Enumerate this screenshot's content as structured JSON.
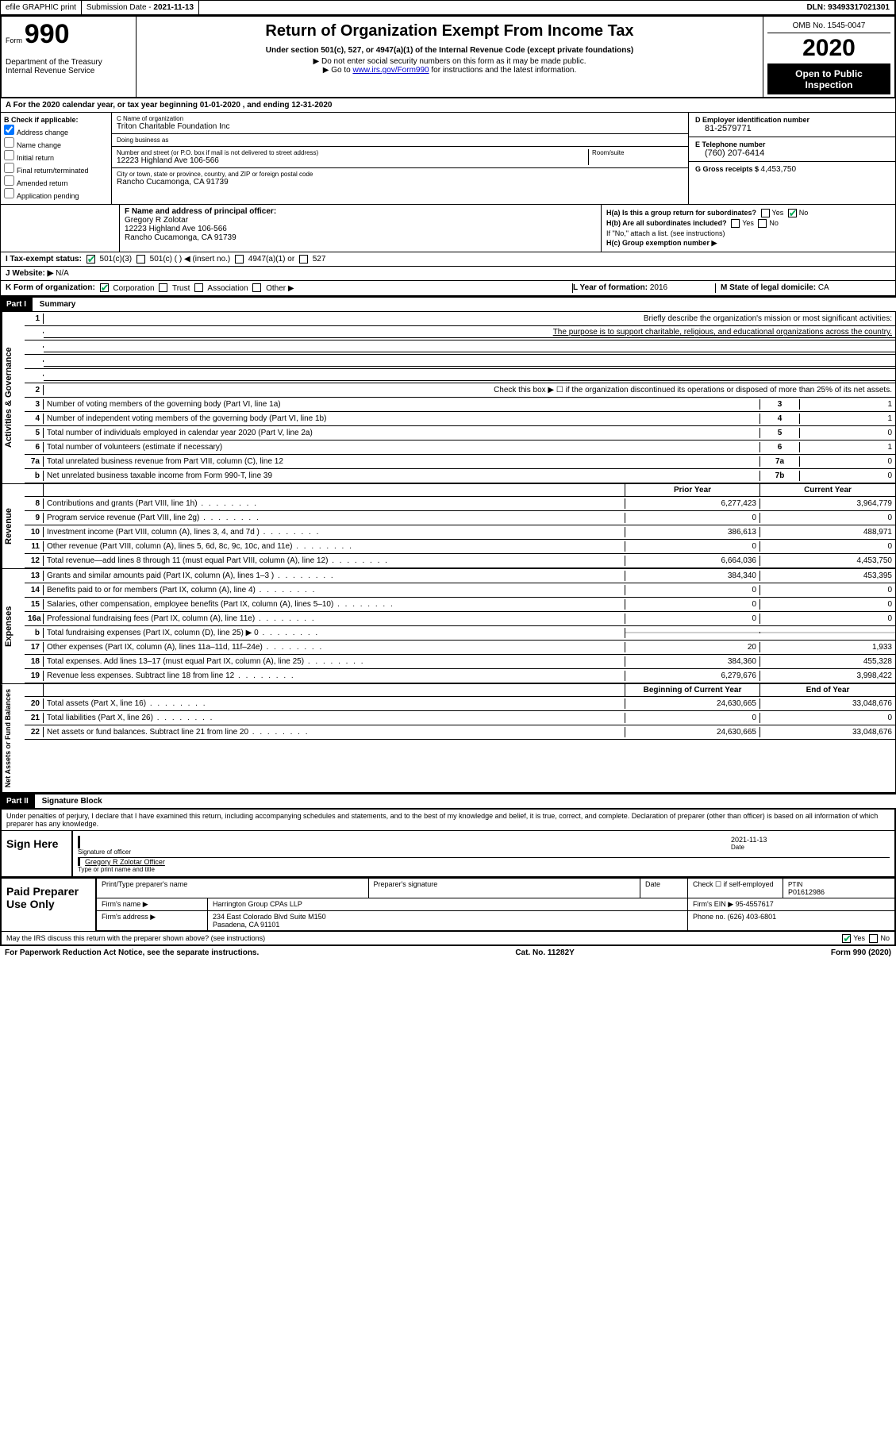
{
  "topbar": {
    "efile": "efile GRAPHIC print",
    "submission_label": "Submission Date - ",
    "submission_date": "2021-11-13",
    "dln_label": "DLN: ",
    "dln": "93493317021301"
  },
  "header": {
    "form_label": "Form",
    "form_num": "990",
    "dept": "Department of the Treasury\nInternal Revenue Service",
    "title": "Return of Organization Exempt From Income Tax",
    "sub1": "Under section 501(c), 527, or 4947(a)(1) of the Internal Revenue Code (except private foundations)",
    "sub2": "▶ Do not enter social security numbers on this form as it may be made public.",
    "sub3_a": "▶ Go to ",
    "sub3_link": "www.irs.gov/Form990",
    "sub3_b": " for instructions and the latest information.",
    "omb": "OMB No. 1545-0047",
    "year": "2020",
    "open": "Open to Public Inspection"
  },
  "row_a": "A For the 2020 calendar year, or tax year beginning 01-01-2020   , and ending 12-31-2020",
  "col_b": {
    "label": "B Check if applicable:",
    "items": [
      "Address change",
      "Name change",
      "Initial return",
      "Final return/terminated",
      "Amended return",
      "Application pending"
    ],
    "checked_index": 0
  },
  "col_c": {
    "name_lbl": "C Name of organization",
    "name": "Triton Charitable Foundation Inc",
    "dba_lbl": "Doing business as",
    "dba": "",
    "street_lbl": "Number and street (or P.O. box if mail is not delivered to street address)",
    "room_lbl": "Room/suite",
    "street": "12223 Highland Ave 106-566",
    "city_lbl": "City or town, state or province, country, and ZIP or foreign postal code",
    "city": "Rancho Cucamonga, CA  91739"
  },
  "col_d": {
    "ein_lbl": "D Employer identification number",
    "ein": "81-2579771",
    "tel_lbl": "E Telephone number",
    "tel": "(760) 207-6414",
    "gross_lbl": "G Gross receipts $ ",
    "gross": "4,453,750"
  },
  "row_f": {
    "lbl": "F Name and address of principal officer:",
    "name": "Gregory R Zolotar",
    "addr1": "12223 Highland Ave 106-566",
    "addr2": "Rancho Cucamonga, CA  91739"
  },
  "row_h": {
    "a": "H(a)  Is this a group return for subordinates?",
    "a_yes": "Yes",
    "a_no": "No",
    "b": "H(b)  Are all subordinates included?",
    "b_note": "If \"No,\" attach a list. (see instructions)",
    "c": "H(c)  Group exemption number ▶"
  },
  "row_i": {
    "lbl": "I  Tax-exempt status:",
    "opts": [
      "501(c)(3)",
      "501(c) (  ) ◀ (insert no.)",
      "4947(a)(1) or",
      "527"
    ],
    "checked": 0
  },
  "row_j": {
    "lbl": "J  Website: ▶",
    "val": "N/A"
  },
  "row_k": {
    "lbl": "K Form of organization:",
    "opts": [
      "Corporation",
      "Trust",
      "Association",
      "Other ▶"
    ],
    "checked": 0,
    "l_lbl": "L Year of formation: ",
    "l_val": "2016",
    "m_lbl": "M State of legal domicile: ",
    "m_val": "CA"
  },
  "part1_label": "Part I",
  "part1_title": "Summary",
  "sections": {
    "gov": {
      "side": "Activities & Governance",
      "rows": [
        {
          "n": "1",
          "d": "Briefly describe the organization's mission or most significant activities:"
        },
        {
          "mission": "The purpose is to support charitable, religious, and educational organizations across the country."
        },
        {
          "n": "2",
          "d": "Check this box ▶ ☐ if the organization discontinued its operations or disposed of more than 25% of its net assets."
        },
        {
          "n": "3",
          "d": "Number of voting members of the governing body (Part VI, line 1a)",
          "an": "3",
          "av": "1"
        },
        {
          "n": "4",
          "d": "Number of independent voting members of the governing body (Part VI, line 1b)",
          "an": "4",
          "av": "1"
        },
        {
          "n": "5",
          "d": "Total number of individuals employed in calendar year 2020 (Part V, line 2a)",
          "an": "5",
          "av": "0"
        },
        {
          "n": "6",
          "d": "Total number of volunteers (estimate if necessary)",
          "an": "6",
          "av": "1"
        },
        {
          "n": "7a",
          "d": "Total unrelated business revenue from Part VIII, column (C), line 12",
          "an": "7a",
          "av": "0"
        },
        {
          "n": "b",
          "d": "Net unrelated business taxable income from Form 990-T, line 39",
          "an": "7b",
          "av": "0"
        }
      ]
    },
    "rev": {
      "side": "Revenue",
      "hdr_prior": "Prior Year",
      "hdr_curr": "Current Year",
      "rows": [
        {
          "n": "8",
          "d": "Contributions and grants (Part VIII, line 1h)",
          "py": "6,277,423",
          "cy": "3,964,779"
        },
        {
          "n": "9",
          "d": "Program service revenue (Part VIII, line 2g)",
          "py": "0",
          "cy": "0"
        },
        {
          "n": "10",
          "d": "Investment income (Part VIII, column (A), lines 3, 4, and 7d )",
          "py": "386,613",
          "cy": "488,971"
        },
        {
          "n": "11",
          "d": "Other revenue (Part VIII, column (A), lines 5, 6d, 8c, 9c, 10c, and 11e)",
          "py": "0",
          "cy": "0"
        },
        {
          "n": "12",
          "d": "Total revenue—add lines 8 through 11 (must equal Part VIII, column (A), line 12)",
          "py": "6,664,036",
          "cy": "4,453,750"
        }
      ]
    },
    "exp": {
      "side": "Expenses",
      "rows": [
        {
          "n": "13",
          "d": "Grants and similar amounts paid (Part IX, column (A), lines 1–3 )",
          "py": "384,340",
          "cy": "453,395"
        },
        {
          "n": "14",
          "d": "Benefits paid to or for members (Part IX, column (A), line 4)",
          "py": "0",
          "cy": "0"
        },
        {
          "n": "15",
          "d": "Salaries, other compensation, employee benefits (Part IX, column (A), lines 5–10)",
          "py": "0",
          "cy": "0"
        },
        {
          "n": "16a",
          "d": "Professional fundraising fees (Part IX, column (A), line 11e)",
          "py": "0",
          "cy": "0"
        },
        {
          "n": "b",
          "d": "Total fundraising expenses (Part IX, column (D), line 25) ▶ 0",
          "grey": true
        },
        {
          "n": "17",
          "d": "Other expenses (Part IX, column (A), lines 11a–11d, 11f–24e)",
          "py": "20",
          "cy": "1,933"
        },
        {
          "n": "18",
          "d": "Total expenses. Add lines 13–17 (must equal Part IX, column (A), line 25)",
          "py": "384,360",
          "cy": "455,328"
        },
        {
          "n": "19",
          "d": "Revenue less expenses. Subtract line 18 from line 12",
          "py": "6,279,676",
          "cy": "3,998,422"
        }
      ]
    },
    "net": {
      "side": "Net Assets or Fund Balances",
      "hdr_prior": "Beginning of Current Year",
      "hdr_curr": "End of Year",
      "rows": [
        {
          "n": "20",
          "d": "Total assets (Part X, line 16)",
          "py": "24,630,665",
          "cy": "33,048,676"
        },
        {
          "n": "21",
          "d": "Total liabilities (Part X, line 26)",
          "py": "0",
          "cy": "0"
        },
        {
          "n": "22",
          "d": "Net assets or fund balances. Subtract line 21 from line 20",
          "py": "24,630,665",
          "cy": "33,048,676"
        }
      ]
    }
  },
  "part2_label": "Part II",
  "part2_title": "Signature Block",
  "sig": {
    "perjury": "Under penalties of perjury, I declare that I have examined this return, including accompanying schedules and statements, and to the best of my knowledge and belief, it is true, correct, and complete. Declaration of preparer (other than officer) is based on all information of which preparer has any knowledge.",
    "sign_here": "Sign Here",
    "sig_lbl": "Signature of officer",
    "date_lbl": "Date",
    "date": "2021-11-13",
    "name": "Gregory R Zolotar  Officer",
    "name_lbl": "Type or print name and title"
  },
  "prep": {
    "label": "Paid Preparer Use Only",
    "h1": "Print/Type preparer's name",
    "h2": "Preparer's signature",
    "h3": "Date",
    "h4": "Check ☐ if self-employed",
    "h5_lbl": "PTIN",
    "h5": "P01612986",
    "firm_lbl": "Firm's name   ▶",
    "firm": "Harrington Group CPAs LLP",
    "ein_lbl": "Firm's EIN ▶",
    "ein": "95-4557617",
    "addr_lbl": "Firm's address ▶",
    "addr1": "234 East Colorado Blvd Suite M150",
    "addr2": "Pasadena, CA  91101",
    "phone_lbl": "Phone no.",
    "phone": "(626) 403-6801"
  },
  "discuss": {
    "q": "May the IRS discuss this return with the preparer shown above? (see instructions)",
    "yes": "Yes",
    "no": "No"
  },
  "footer": {
    "left": "For Paperwork Reduction Act Notice, see the separate instructions.",
    "mid": "Cat. No. 11282Y",
    "right": "Form 990 (2020)"
  },
  "colors": {
    "bg": "#ffffff",
    "border": "#000000",
    "link": "#0000cc",
    "grey_fill": "#cfcfcf",
    "check_green": "#00aa55"
  },
  "fontsizes": {
    "base": 10,
    "title": 20,
    "year": 30,
    "form_num": 34,
    "side_label": 11
  }
}
